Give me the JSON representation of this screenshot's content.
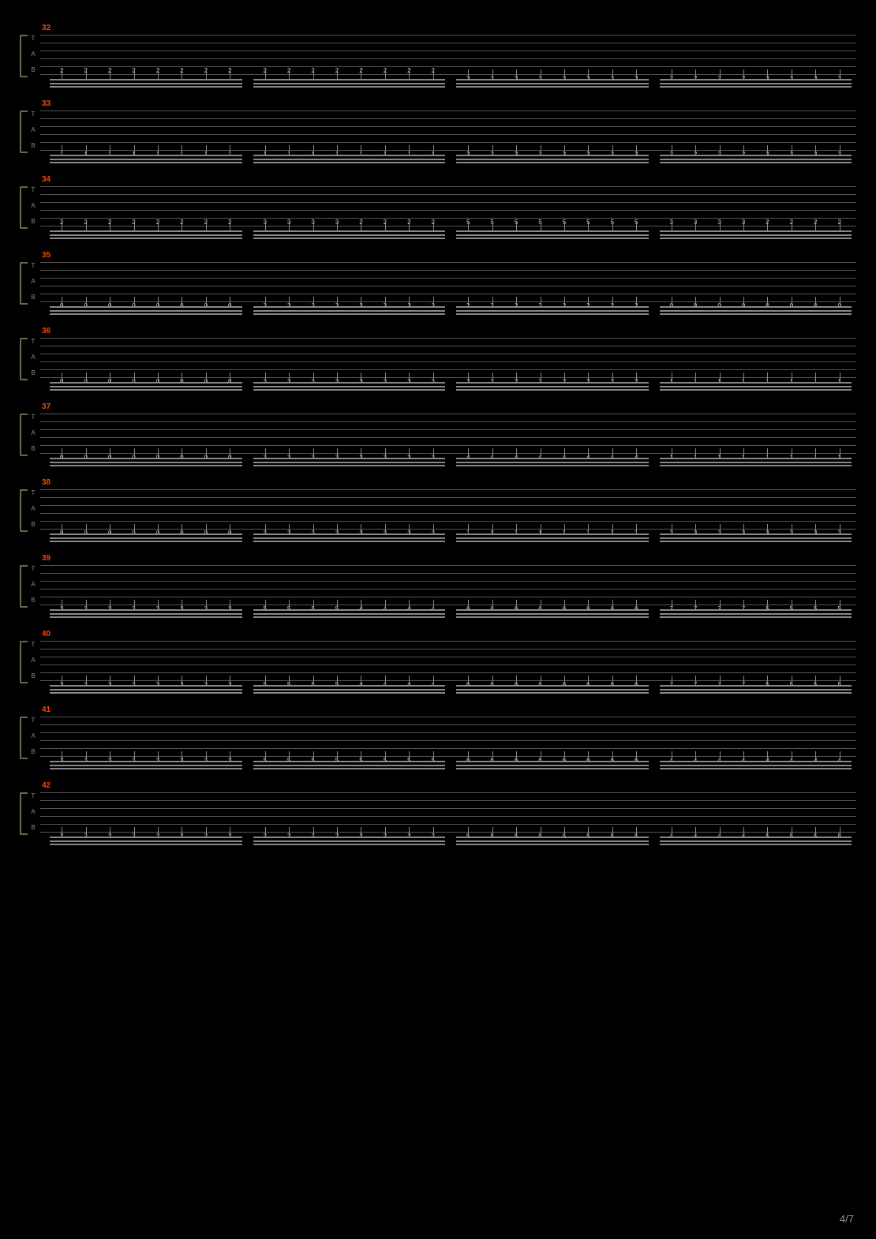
{
  "page_number": "4/7",
  "background_color": "#000000",
  "staff_line_color": "#555555",
  "note_text_color": "#cccccc",
  "beam_color": "#888888",
  "measure_number_color": "#ff4400",
  "bracket_color": "#6a6a4a",
  "tab_labels": [
    "T",
    "A",
    "B"
  ],
  "strings_per_staff": 6,
  "groups_per_measure": 4,
  "notes_per_group": 8,
  "measures": [
    {
      "number": "32",
      "groups": [
        {
          "string": 5,
          "frets": [
            "2",
            "2",
            "2",
            "2",
            "2",
            "2",
            "2",
            "2"
          ]
        },
        {
          "string": 5,
          "frets": [
            "2",
            "2",
            "2",
            "2",
            "2",
            "2",
            "2",
            "2"
          ]
        },
        {
          "string": 6,
          "frets": [
            "3",
            "3",
            "3",
            "3",
            "3",
            "3",
            "3",
            "3"
          ]
        },
        {
          "string": 6,
          "frets": [
            "2",
            "2",
            "2",
            "2",
            "3",
            "3",
            "3",
            "3"
          ]
        }
      ]
    },
    {
      "number": "33",
      "groups": [
        {
          "string": 6,
          "frets": [
            "1",
            "1",
            "1",
            "1",
            "1",
            "1",
            "1",
            "1"
          ]
        },
        {
          "string": 6,
          "frets": [
            "1",
            "1",
            "1",
            "1",
            "1",
            "1",
            "1",
            "1"
          ]
        },
        {
          "string": 6,
          "frets": [
            "3",
            "3",
            "3",
            "3",
            "3",
            "3",
            "3",
            "3"
          ]
        },
        {
          "string": 6,
          "frets": [
            "2",
            "2",
            "2",
            "2",
            "3",
            "3",
            "3",
            "3"
          ]
        }
      ]
    },
    {
      "number": "34",
      "groups": [
        {
          "string": 5,
          "frets": [
            "2",
            "2",
            "2",
            "2",
            "2",
            "2",
            "2",
            "2"
          ]
        },
        {
          "string": 5,
          "frets": [
            "3",
            "3",
            "3",
            "3",
            "2",
            "2",
            "2",
            "2"
          ]
        },
        {
          "string": 5,
          "frets": [
            "5",
            "5",
            "5",
            "5",
            "5",
            "5",
            "5",
            "5"
          ]
        },
        {
          "string": 5,
          "frets": [
            "3",
            "3",
            "3",
            "3",
            "2",
            "2",
            "2",
            "2"
          ]
        }
      ]
    },
    {
      "number": "35",
      "groups": [
        {
          "string": 6,
          "frets": [
            "0",
            "0",
            "0",
            "0",
            "0",
            "0",
            "0",
            "0"
          ]
        },
        {
          "string": 6,
          "frets": [
            "3",
            "3",
            "3",
            "3",
            "3",
            "3",
            "3",
            "3"
          ]
        },
        {
          "string": 6,
          "frets": [
            "2",
            "2",
            "2",
            "2",
            "2",
            "2",
            "2",
            "2"
          ]
        },
        {
          "string": 6,
          "frets": [
            "0",
            "0",
            "0",
            "0",
            "0",
            "0",
            "0",
            "0"
          ]
        }
      ]
    },
    {
      "number": "36",
      "groups": [
        {
          "string": 6,
          "frets": [
            "0",
            "0",
            "0",
            "0",
            "0",
            "0",
            "0",
            "0"
          ]
        },
        {
          "string": 6,
          "frets": [
            "3",
            "3",
            "3",
            "3",
            "3",
            "3",
            "3",
            "3"
          ]
        },
        {
          "string": 6,
          "frets": [
            "2",
            "2",
            "2",
            "2",
            "2",
            "2",
            "2",
            "2"
          ]
        },
        {
          "string": 6,
          "frets": [
            "1",
            "1",
            "1",
            "1",
            "1",
            "1",
            "1",
            "1"
          ]
        }
      ]
    },
    {
      "number": "37",
      "groups": [
        {
          "string": 6,
          "frets": [
            "0",
            "0",
            "0",
            "0",
            "0",
            "0",
            "0",
            "0"
          ]
        },
        {
          "string": 6,
          "frets": [
            "3",
            "3",
            "3",
            "3",
            "3",
            "3",
            "3",
            "3"
          ]
        },
        {
          "string": 6,
          "frets": [
            "4",
            "4",
            "4",
            "4",
            "4",
            "4",
            "4",
            "4"
          ]
        },
        {
          "string": 6,
          "frets": [
            "1",
            "1",
            "1",
            "1",
            "1",
            "1",
            "1",
            "1"
          ]
        }
      ]
    },
    {
      "number": "38",
      "groups": [
        {
          "string": 6,
          "frets": [
            "0",
            "0",
            "0",
            "0",
            "0",
            "0",
            "0",
            "0"
          ]
        },
        {
          "string": 6,
          "frets": [
            "3",
            "3",
            "3",
            "3",
            "3",
            "3",
            "3",
            "3"
          ]
        },
        {
          "string": 6,
          "frets": [
            "1",
            "1",
            "1",
            "1",
            "1",
            "1",
            "1",
            "1"
          ]
        },
        {
          "string": 6,
          "frets": [
            "3",
            "3",
            "3",
            "3",
            "3",
            "3",
            "3",
            "3"
          ]
        }
      ]
    },
    {
      "number": "39",
      "groups": [
        {
          "string": 6,
          "frets": [
            "3",
            "3",
            "3",
            "3",
            "3",
            "3",
            "3",
            "3"
          ]
        },
        {
          "string": 6,
          "frets": [
            "5",
            "5",
            "5",
            "5",
            "4",
            "4",
            "4",
            "4"
          ]
        },
        {
          "string": 6,
          "frets": [
            "6",
            "6",
            "6",
            "6",
            "6",
            "6",
            "6",
            "6"
          ]
        },
        {
          "string": 6,
          "frets": [
            "7",
            "7",
            "7",
            "7",
            "5",
            "5",
            "5",
            "5"
          ]
        }
      ]
    },
    {
      "number": "40",
      "groups": [
        {
          "string": 6,
          "frets": [
            "3",
            "3",
            "3",
            "3",
            "3",
            "3",
            "3",
            "3"
          ]
        },
        {
          "string": 6,
          "frets": [
            "5",
            "5",
            "5",
            "5",
            "4",
            "4",
            "4",
            "4"
          ]
        },
        {
          "string": 6,
          "frets": [
            "6",
            "6",
            "6",
            "6",
            "6",
            "6",
            "6",
            "6"
          ]
        },
        {
          "string": 6,
          "frets": [
            "7",
            "7",
            "7",
            "7",
            "5",
            "5",
            "5",
            "5"
          ]
        }
      ]
    },
    {
      "number": "41",
      "groups": [
        {
          "string": 6,
          "frets": [
            "3",
            "3",
            "3",
            "3",
            "3",
            "3",
            "3",
            "3"
          ]
        },
        {
          "string": 6,
          "frets": [
            "5",
            "5",
            "5",
            "5",
            "5",
            "5",
            "5",
            "5"
          ]
        },
        {
          "string": 6,
          "frets": [
            "6",
            "6",
            "6",
            "6",
            "6",
            "6",
            "6",
            "6"
          ]
        },
        {
          "string": 6,
          "frets": [
            "4",
            "4",
            "4",
            "4",
            "4",
            "4",
            "4",
            "4"
          ]
        }
      ]
    },
    {
      "number": "42",
      "groups": [
        {
          "string": 6,
          "frets": [
            "2",
            "2",
            "2",
            "2",
            "2",
            "2",
            "2",
            "2"
          ]
        },
        {
          "string": 6,
          "frets": [
            "2",
            "2",
            "2",
            "2",
            "2",
            "2",
            "2",
            "2"
          ]
        },
        {
          "string": 6,
          "frets": [
            "5",
            "5",
            "5",
            "5",
            "5",
            "5",
            "5",
            "5"
          ]
        },
        {
          "string": 6,
          "frets": [
            "4",
            "4",
            "4",
            "4",
            "5",
            "5",
            "5",
            "5"
          ]
        }
      ]
    }
  ]
}
